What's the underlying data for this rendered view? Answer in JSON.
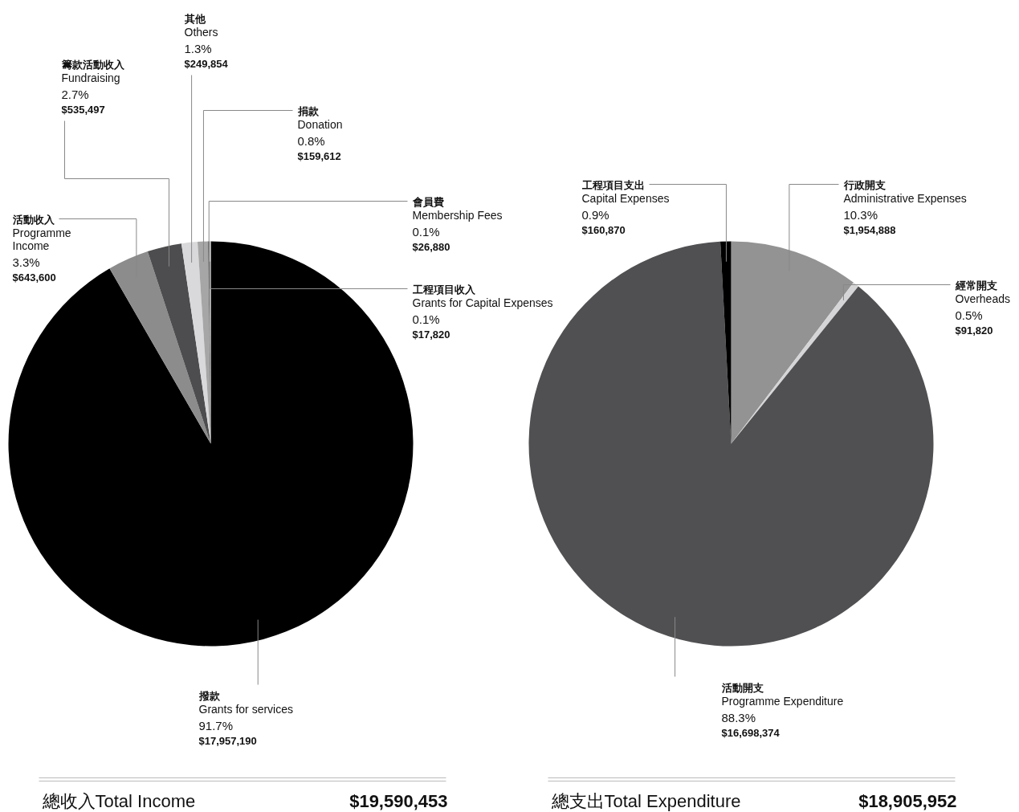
{
  "chart_data": [
    {
      "type": "pie",
      "categories": [
        "撥款\nGrants for services",
        "活動收入\nProgramme\nIncome",
        "籌款活動收入\nFundraising",
        "其他\nOthers",
        "捐款\nDonation",
        "會員費\nMembership Fees",
        "工程項目收入\nGrants for Capital Expenses"
      ],
      "values": [
        17957190,
        643600,
        535497,
        249854,
        159612,
        26880,
        17820
      ],
      "colors": [
        "#000000",
        "#8c8c8c",
        "#4d4d4f",
        "#d9d9db",
        "#a6a6a6",
        "#6d6d6d",
        "#c0c0c0"
      ],
      "value_labels": [
        "91.7%\n$17,957,190",
        "3.3%\n$643,600",
        "2.7%\n$535,497",
        "1.3%\n$249,854",
        "0.8%\n$159,612",
        "0.1%\n$26,880",
        "0.1%\n$17,820"
      ],
      "annotations": [
        "總收入Total Income",
        "$19,590,453"
      ]
    },
    {
      "type": "pie",
      "categories": [
        "行政開支\nAdministrative Expenses",
        "經常開支\nOverheads",
        "活動開支\nProgramme Expenditure",
        "工程項目支出\nCapital Expenses"
      ],
      "values": [
        1954888,
        91820,
        16698374,
        160870
      ],
      "colors": [
        "#939393",
        "#d5d5d7",
        "#505052",
        "#000000"
      ],
      "value_labels": [
        "10.3%\n$1,954,888",
        "0.5%\n$91,820",
        "88.3%\n$16,698,374",
        "0.9%\n$160,870"
      ],
      "annotations": [
        "總支出Total Expenditure",
        "$18,905,952"
      ]
    }
  ]
}
